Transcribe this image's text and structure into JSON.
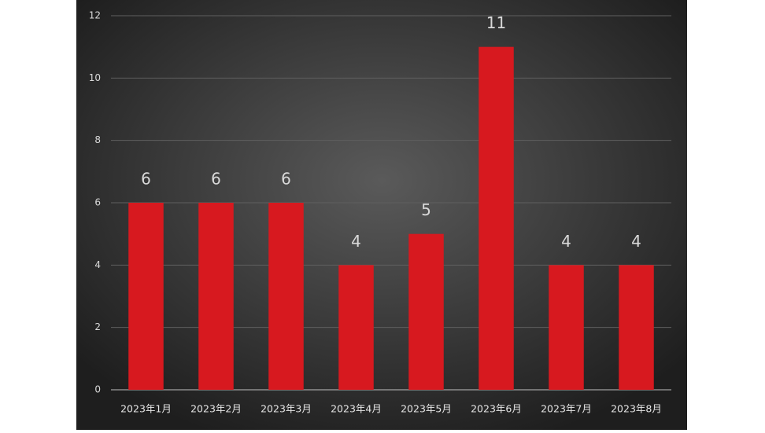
{
  "chart_data": {
    "type": "bar",
    "categories": [
      "2023年1月",
      "2023年2月",
      "2023年3月",
      "2023年4月",
      "2023年5月",
      "2023年6月",
      "2023年7月",
      "2023年8月"
    ],
    "values": [
      6,
      6,
      6,
      4,
      5,
      11,
      4,
      4
    ],
    "color": "#d7191f",
    "ylim": [
      0,
      12
    ],
    "yticks": [
      0,
      2,
      4,
      6,
      8,
      10,
      12
    ],
    "grid": true,
    "data_labels": true
  }
}
